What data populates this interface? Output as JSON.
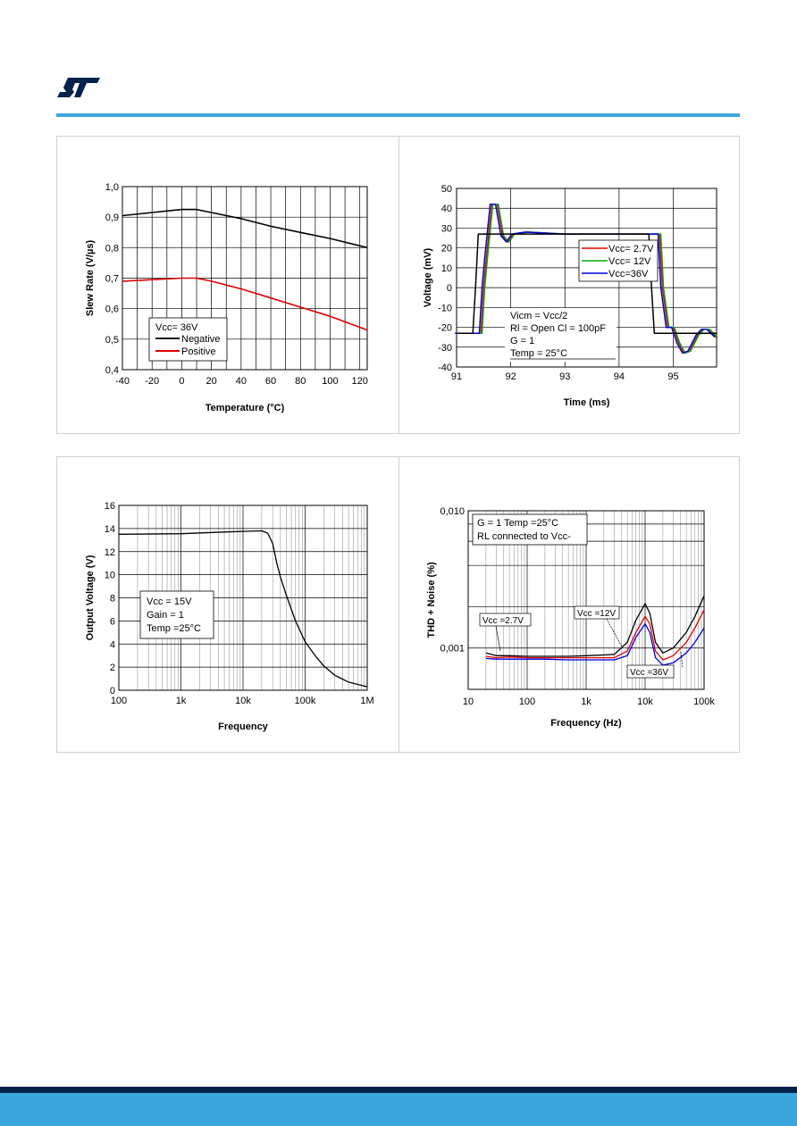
{
  "brand": {
    "logo": "ST",
    "accent": "#3aa6dc",
    "footer_dark": "#03234b"
  },
  "chart_data": [
    {
      "type": "line",
      "xlabel": "Temperature (°C)",
      "ylabel": "Slew Rate (V/µs)",
      "xlim": [
        -40,
        125
      ],
      "ylim": [
        0.4,
        1.0
      ],
      "x_ticks": [
        "-40",
        "-20",
        "0",
        "20",
        "40",
        "60",
        "80",
        "100",
        "120"
      ],
      "y_ticks": [
        "0,4",
        "0,5",
        "0,6",
        "0,7",
        "0,8",
        "0,9",
        "1,0"
      ],
      "legend_title": "Vcc= 36V",
      "legend_position": "bottom-left",
      "grid": true,
      "series": [
        {
          "name": "Negative",
          "color": "#000000",
          "x": [
            -40,
            -20,
            0,
            10,
            20,
            40,
            60,
            80,
            100,
            125
          ],
          "y": [
            0.905,
            0.915,
            0.925,
            0.925,
            0.915,
            0.895,
            0.87,
            0.85,
            0.83,
            0.8
          ]
        },
        {
          "name": "Positive",
          "color": "#e00000",
          "x": [
            -40,
            -20,
            0,
            10,
            20,
            40,
            60,
            80,
            100,
            125
          ],
          "y": [
            0.69,
            0.695,
            0.7,
            0.7,
            0.69,
            0.665,
            0.635,
            0.605,
            0.575,
            0.53
          ]
        }
      ]
    },
    {
      "type": "line",
      "xlabel": "Time (ms)",
      "ylabel": "Voltage (mV)",
      "xlim": [
        91,
        95.8
      ],
      "ylim": [
        -40,
        50
      ],
      "x_ticks": [
        "91",
        "92",
        "93",
        "94",
        "95"
      ],
      "y_ticks": [
        "-40",
        "-30",
        "-20",
        "-10",
        "0",
        "10",
        "20",
        "30",
        "40",
        "50"
      ],
      "legend_position": "right-middle",
      "grid": true,
      "annotations": [
        "Vicm = Vcc/2",
        "Rl = Open  Cl = 100pF",
        "G = 1",
        "Temp = 25°C"
      ],
      "series": [
        {
          "name": "",
          "color": "#000000",
          "x": [
            91,
            91.3,
            91.35,
            91.4,
            92,
            93,
            94,
            94.55,
            94.6,
            94.65,
            95,
            95.8
          ],
          "y": [
            -23,
            -23,
            0,
            27,
            27,
            27,
            27,
            27,
            0,
            -23,
            -23,
            -23
          ]
        },
        {
          "name": "Vcc= 2.7V",
          "color": "#e00000",
          "x": [
            91,
            91.45,
            91.5,
            91.55,
            91.65,
            91.75,
            91.85,
            91.95,
            92.05,
            92.3,
            93,
            94.3,
            94.6,
            94.75,
            94.8,
            94.9,
            95.0,
            95.1,
            95.2,
            95.3,
            95.45,
            95.55,
            95.65,
            95.8
          ],
          "y": [
            -23,
            -23,
            0,
            15,
            42,
            42,
            26,
            23,
            27,
            28,
            27,
            27,
            27,
            27,
            0,
            -20,
            -20,
            -28,
            -33,
            -32,
            -24,
            -21,
            -21,
            -25
          ]
        },
        {
          "name": "Vcc= 12V",
          "color": "#00b000",
          "x": [
            91,
            91.45,
            91.5,
            91.55,
            91.65,
            91.75,
            91.85,
            91.95,
            92.05,
            92.3,
            93,
            94.3,
            94.6,
            94.75,
            94.8,
            94.9,
            95.0,
            95.1,
            95.2,
            95.3,
            95.45,
            95.55,
            95.65,
            95.8
          ],
          "y": [
            -23,
            -23,
            0,
            15,
            42,
            42,
            26,
            23,
            27,
            28,
            27,
            27,
            27,
            27,
            0,
            -20,
            -20,
            -28,
            -33,
            -32,
            -24,
            -21,
            -21,
            -25
          ]
        },
        {
          "name": "Vcc=36V",
          "color": "#0000e0",
          "x": [
            91,
            91.45,
            91.5,
            91.55,
            91.65,
            91.75,
            91.85,
            91.95,
            92.05,
            92.3,
            93,
            94.3,
            94.6,
            94.75,
            94.8,
            94.9,
            95.0,
            95.1,
            95.2,
            95.3,
            95.45,
            95.55,
            95.65,
            95.8
          ],
          "y": [
            -23,
            -23,
            0,
            15,
            42,
            42,
            26,
            23,
            27,
            28,
            27,
            27,
            27,
            27,
            0,
            -20,
            -20,
            -28,
            -33,
            -32,
            -24,
            -21,
            -21,
            -25
          ]
        }
      ]
    },
    {
      "type": "line",
      "xlabel": "Frequency",
      "ylabel": "Output Voltage (V)",
      "xscale": "log",
      "xlim": [
        100,
        1000000
      ],
      "ylim": [
        0,
        16
      ],
      "x_ticks": [
        "100",
        "1k",
        "10k",
        "100k",
        "1M"
      ],
      "y_ticks": [
        "0",
        "2",
        "4",
        "6",
        "8",
        "10",
        "12",
        "14",
        "16"
      ],
      "annotations": [
        "Vcc = 15V",
        "Gain = 1",
        "Temp =25°C"
      ],
      "grid": true,
      "series": [
        {
          "name": "",
          "color": "#000000",
          "x": [
            100,
            1000,
            5000,
            10000,
            20000,
            25000,
            30000,
            35000,
            40000,
            50000,
            70000,
            100000,
            150000,
            200000,
            300000,
            500000,
            1000000
          ],
          "y": [
            13.5,
            13.55,
            13.7,
            13.75,
            13.8,
            13.6,
            12.7,
            11.0,
            9.8,
            8.2,
            6.0,
            4.2,
            2.9,
            2.1,
            1.3,
            0.7,
            0.3
          ]
        }
      ]
    },
    {
      "type": "line",
      "xlabel": "Frequency (Hz)",
      "ylabel": "THD + Noise (%)",
      "xscale": "log",
      "yscale": "log",
      "xlim": [
        10,
        100000
      ],
      "ylim": [
        0.0005,
        0.01
      ],
      "x_ticks": [
        "10",
        "100",
        "1k",
        "10k",
        "100k"
      ],
      "y_ticks": [
        "0,001",
        "0,010"
      ],
      "annotations": [
        "G = 1 Temp =25°C",
        "RL connected to Vcc-",
        "Vcc =2.7V",
        "Vcc =12V",
        "Vcc =36V"
      ],
      "grid": true,
      "series": [
        {
          "name": "Vcc =2.7V",
          "color": "#000000",
          "x": [
            20,
            30,
            50,
            100,
            200,
            500,
            1000,
            2000,
            3000,
            5000,
            7000,
            10000,
            12000,
            15000,
            20000,
            30000,
            50000,
            70000,
            100000
          ],
          "y": [
            0.00092,
            0.00088,
            0.00088,
            0.00087,
            0.00087,
            0.00087,
            0.00088,
            0.00089,
            0.0009,
            0.0011,
            0.0016,
            0.0021,
            0.0018,
            0.0011,
            0.00092,
            0.001,
            0.0013,
            0.0017,
            0.0024
          ]
        },
        {
          "name": "Vcc =12V",
          "color": "#e00000",
          "x": [
            20,
            30,
            50,
            100,
            200,
            500,
            1000,
            2000,
            3000,
            5000,
            7000,
            10000,
            12000,
            15000,
            20000,
            30000,
            50000,
            70000,
            100000
          ],
          "y": [
            0.00087,
            0.00085,
            0.00086,
            0.00085,
            0.00085,
            0.00085,
            0.00085,
            0.00085,
            0.00085,
            0.00095,
            0.0013,
            0.0017,
            0.0015,
            0.00095,
            0.00082,
            0.00088,
            0.0011,
            0.0014,
            0.0019
          ]
        },
        {
          "name": "Vcc =36V",
          "color": "#0000e0",
          "x": [
            20,
            30,
            50,
            100,
            200,
            500,
            1000,
            2000,
            3000,
            5000,
            7000,
            10000,
            12000,
            15000,
            20000,
            30000,
            50000,
            70000,
            100000
          ],
          "y": [
            0.00084,
            0.00083,
            0.00083,
            0.00083,
            0.00083,
            0.00082,
            0.00082,
            0.00082,
            0.00082,
            0.00088,
            0.0012,
            0.0015,
            0.0013,
            0.00085,
            0.00075,
            0.00078,
            0.00092,
            0.0011,
            0.0014
          ]
        }
      ]
    }
  ]
}
